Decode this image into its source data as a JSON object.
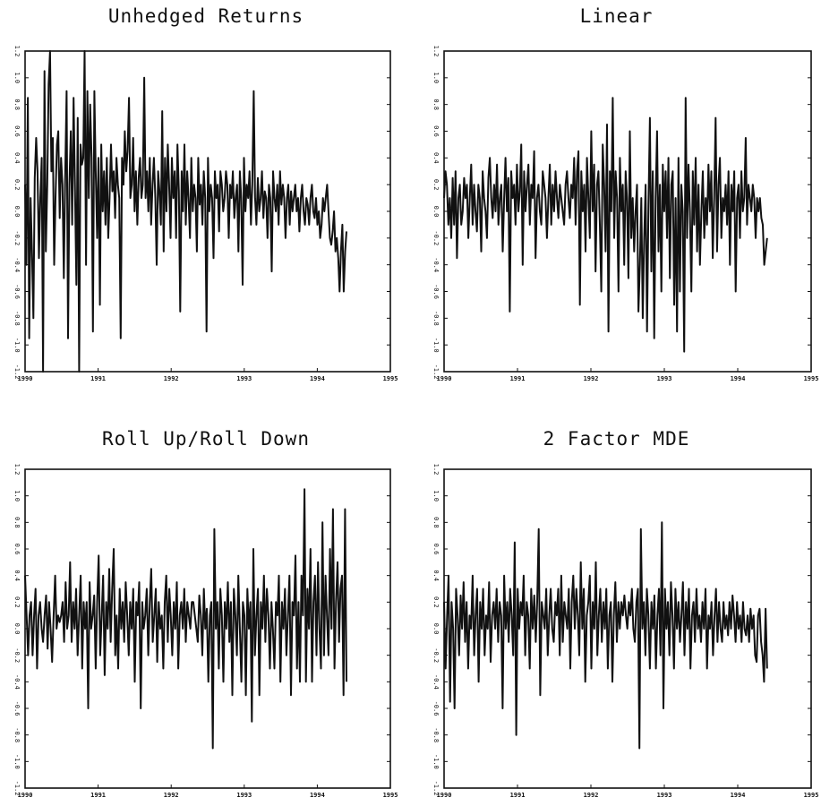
{
  "chart_data": [
    {
      "type": "line",
      "title": "Unhedged Returns",
      "xlabel": "",
      "ylabel": "",
      "xlim": [
        1990,
        1995
      ],
      "ylim": [
        -1.2,
        1.2
      ],
      "x_ticks": [
        "1990",
        "1991",
        "1992",
        "1993",
        "1994",
        "1995"
      ],
      "y_ticks": [
        "1.2",
        "1.0",
        "0.8",
        "0.6",
        "0.4",
        "0.2",
        "0.0",
        "-0.2",
        "-0.4",
        "-0.6",
        "-0.8",
        "-1.0",
        "-1.2"
      ],
      "series": [
        {
          "values": [
            0.2,
            -0.4,
            0.85,
            -0.95,
            0.1,
            -0.3,
            -0.8,
            0.25,
            0.55,
            0.3,
            -0.35,
            0.1,
            0.4,
            -1.2,
            1.05,
            -0.3,
            0.2,
            0.95,
            1.2,
            0.3,
            0.55,
            -0.4,
            0.1,
            0.5,
            0.6,
            -0.05,
            0.4,
            0.2,
            -0.5,
            0.3,
            0.9,
            -0.95,
            0.2,
            0.6,
            -0.1,
            0.85,
            0.2,
            -0.55,
            0.7,
            -1.2,
            0.5,
            0.35,
            0.4,
            1.2,
            -0.4,
            0.9,
            0.1,
            0.8,
            0.4,
            -0.9,
            0.9,
            0.3,
            -0.2,
            0.4,
            -0.7,
            0.5,
            0.0,
            0.3,
            -0.1,
            0.4,
            -0.2,
            0.1,
            0.5,
            0.15,
            0.3,
            -0.05,
            0.4,
            0.2,
            0.1,
            -0.95,
            0.4,
            0.2,
            0.6,
            0.3,
            0.45,
            0.85,
            0.1,
            0.2,
            0.55,
            0.0,
            0.3,
            -0.1,
            0.25,
            0.4,
            0.1,
            0.2,
            1.0,
            0.1,
            0.3,
            0.0,
            0.4,
            -0.1,
            0.2,
            0.4,
            0.1,
            -0.4,
            0.3,
            0.15,
            -0.1,
            0.75,
            -0.3,
            0.4,
            0.0,
            0.5,
            0.2,
            -0.2,
            0.4,
            0.1,
            0.3,
            -0.2,
            0.5,
            0.15,
            -0.75,
            0.3,
            0.0,
            0.5,
            -0.1,
            0.3,
            0.1,
            -0.2,
            0.4,
            0.0,
            0.2,
            0.1,
            -0.3,
            0.4,
            0.05,
            0.2,
            -0.1,
            0.3,
            0.1,
            -0.9,
            0.4,
            0.0,
            0.2,
            0.1,
            -0.35,
            0.3,
            0.1,
            0.2,
            -0.15,
            0.3,
            0.2,
            0.0,
            0.1,
            0.3,
            0.2,
            -0.2,
            0.2,
            0.1,
            0.3,
            -0.05,
            0.1,
            0.2,
            -0.3,
            0.3,
            0.1,
            -0.55,
            0.4,
            0.0,
            0.2,
            0.1,
            0.3,
            -0.1,
            0.2,
            0.9,
            0.1,
            -0.1,
            0.25,
            0.0,
            0.1,
            0.3,
            -0.05,
            0.15,
            0.1,
            -0.2,
            0.2,
            0.1,
            -0.45,
            0.3,
            0.1,
            0.0,
            0.2,
            -0.1,
            0.3,
            0.05,
            0.2,
            0.1,
            -0.2,
            0.1,
            0.2,
            -0.1,
            0.15,
            0.0,
            0.1,
            0.2,
            0.0,
            0.1,
            -0.15,
            0.1,
            0.2,
            0.0,
            -0.1,
            0.1,
            0.05,
            -0.1,
            0.1,
            0.2,
            0.0,
            -0.05,
            0.1,
            -0.1,
            0.0,
            -0.2,
            -0.1,
            0.1,
            0.0,
            0.1,
            0.2,
            0.0,
            -0.2,
            -0.25,
            -0.15,
            0.0,
            -0.3,
            -0.2,
            -0.35,
            -0.6,
            -0.3,
            -0.1,
            -0.6,
            -0.3,
            -0.15
          ]
        }
      ]
    },
    {
      "type": "line",
      "title": "Linear",
      "xlabel": "",
      "ylabel": "",
      "xlim": [
        1990,
        1995
      ],
      "ylim": [
        -1.2,
        1.2
      ],
      "x_ticks": [
        "1990",
        "1991",
        "1992",
        "1993",
        "1994",
        "1995"
      ],
      "y_ticks": [
        "1.2",
        "1.0",
        "0.8",
        "0.6",
        "0.4",
        "0.2",
        "0.0",
        "-0.2",
        "-0.4",
        "-0.6",
        "-0.8",
        "-1.0",
        "-1.2"
      ],
      "series": [
        {
          "values": [
            0.1,
            0.3,
            0.2,
            -0.1,
            0.1,
            -0.2,
            0.25,
            -0.1,
            0.3,
            -0.35,
            0.1,
            0.2,
            -0.1,
            0.0,
            0.25,
            0.1,
            0.2,
            -0.2,
            0.1,
            0.35,
            -0.1,
            0.2,
            0.0,
            -0.15,
            0.2,
            0.1,
            -0.3,
            0.3,
            0.1,
            0.0,
            -0.2,
            0.25,
            0.4,
            0.1,
            -0.05,
            0.2,
            0.0,
            0.35,
            -0.1,
            0.1,
            0.2,
            -0.3,
            0.1,
            0.4,
            0.0,
            0.25,
            -0.75,
            0.3,
            0.1,
            0.2,
            -0.1,
            0.35,
            0.0,
            0.15,
            0.5,
            -0.4,
            0.3,
            0.0,
            0.2,
            0.35,
            -0.1,
            0.2,
            0.1,
            0.45,
            -0.35,
            0.1,
            0.2,
            0.0,
            -0.1,
            0.3,
            0.2,
            0.1,
            -0.2,
            0.1,
            0.35,
            -0.1,
            0.2,
            0.0,
            0.3,
            0.1,
            -0.05,
            0.2,
            0.1,
            0.0,
            -0.1,
            0.2,
            0.3,
            0.1,
            -0.05,
            0.2,
            0.1,
            0.4,
            -0.1,
            0.3,
            0.45,
            -0.7,
            0.3,
            0.0,
            0.2,
            -0.3,
            0.4,
            0.1,
            -0.2,
            0.6,
            0.0,
            0.35,
            -0.45,
            0.2,
            0.3,
            -0.1,
            -0.6,
            0.5,
            0.2,
            -0.3,
            0.65,
            -0.9,
            0.3,
            0.0,
            0.85,
            -0.2,
            0.3,
            0.1,
            -0.6,
            0.4,
            0.0,
            0.2,
            -0.4,
            0.3,
            0.1,
            -0.5,
            0.6,
            -0.2,
            0.1,
            -0.3,
            0.0,
            0.2,
            -0.75,
            -0.4,
            0.1,
            -0.8,
            -0.2,
            0.2,
            -0.9,
            0.05,
            0.7,
            -0.45,
            0.3,
            -0.95,
            0.1,
            0.6,
            -0.3,
            0.2,
            -0.6,
            0.35,
            0.0,
            0.3,
            -0.2,
            0.4,
            -0.5,
            0.2,
            0.3,
            -0.7,
            0.1,
            -0.9,
            0.4,
            -0.6,
            0.2,
            0.0,
            -1.05,
            0.85,
            -0.2,
            0.35,
            0.0,
            -0.6,
            0.3,
            -0.1,
            0.4,
            -0.3,
            0.2,
            -0.4,
            0.0,
            0.3,
            -0.2,
            0.1,
            -0.1,
            0.35,
            0.0,
            0.3,
            -0.35,
            0.1,
            0.7,
            -0.3,
            0.2,
            0.4,
            -0.2,
            0.1,
            0.0,
            0.2,
            -0.1,
            0.3,
            -0.4,
            0.2,
            0.0,
            0.3,
            -0.6,
            0.1,
            0.2,
            -0.2,
            0.3,
            0.0,
            0.1,
            0.55,
            -0.1,
            0.2,
            0.1,
            0.0,
            0.2,
            0.1,
            -0.2,
            0.1,
            0.0,
            0.1,
            -0.05,
            -0.1,
            -0.4,
            -0.3,
            -0.2
          ]
        }
      ]
    },
    {
      "type": "line",
      "title": "Roll Up/Roll Down",
      "xlabel": "",
      "ylabel": "",
      "xlim": [
        1990,
        1995
      ],
      "ylim": [
        -1.2,
        1.2
      ],
      "x_ticks": [
        "1990",
        "1991",
        "1992",
        "1993",
        "1994",
        "1995"
      ],
      "y_ticks": [
        "1.2",
        "1.0",
        "0.8",
        "0.6",
        "0.4",
        "0.2",
        "0.0",
        "-0.2",
        "-0.4",
        "-0.6",
        "-0.8",
        "-1.0",
        "-1.2"
      ],
      "series": [
        {
          "values": [
            0.4,
            0.1,
            -0.2,
            0.1,
            0.2,
            -0.2,
            0.1,
            0.3,
            -0.3,
            0.1,
            0.2,
            0.0,
            -0.1,
            0.1,
            0.25,
            -0.15,
            0.2,
            0.0,
            -0.25,
            0.1,
            0.4,
            0.0,
            0.1,
            0.05,
            0.1,
            0.2,
            -0.1,
            0.35,
            0.0,
            0.1,
            0.5,
            -0.1,
            0.2,
            0.0,
            0.3,
            -0.2,
            0.1,
            0.4,
            -0.3,
            0.2,
            0.0,
            0.2,
            -0.6,
            0.35,
            0.0,
            0.1,
            0.25,
            -0.3,
            0.2,
            0.55,
            -0.2,
            0.1,
            0.4,
            -0.35,
            0.2,
            0.0,
            0.45,
            -0.1,
            0.3,
            0.6,
            -0.2,
            0.1,
            -0.3,
            0.3,
            0.0,
            0.2,
            -0.1,
            0.35,
            0.1,
            -0.2,
            0.2,
            0.0,
            0.3,
            -0.4,
            0.2,
            0.1,
            0.35,
            -0.6,
            0.2,
            0.0,
            0.1,
            0.3,
            -0.2,
            0.2,
            0.45,
            -0.1,
            0.1,
            0.3,
            -0.25,
            0.2,
            0.0,
            0.1,
            -0.3,
            0.2,
            0.4,
            -0.1,
            0.3,
            0.1,
            -0.2,
            0.2,
            0.0,
            0.35,
            -0.3,
            0.1,
            0.2,
            0.0,
            0.3,
            -0.1,
            0.2,
            0.1,
            0.0,
            0.2,
            0.2,
            0.1,
            0.0,
            -0.1,
            0.25,
            0.1,
            -0.2,
            0.3,
            0.0,
            0.15,
            -0.4,
            0.1,
            0.2,
            -0.9,
            0.75,
            0.0,
            0.2,
            -0.3,
            0.3,
            0.1,
            -0.4,
            0.2,
            0.0,
            0.35,
            -0.1,
            0.2,
            -0.5,
            0.3,
            0.1,
            -0.2,
            0.4,
            0.0,
            -0.4,
            0.2,
            0.1,
            -0.5,
            0.3,
            0.0,
            0.2,
            -0.7,
            0.6,
            -0.2,
            0.1,
            0.3,
            -0.5,
            0.2,
            0.0,
            0.4,
            -0.1,
            0.3,
            0.1,
            -0.3,
            0.2,
            0.0,
            -0.3,
            0.2,
            0.1,
            0.4,
            -0.4,
            0.2,
            0.0,
            0.3,
            -0.2,
            0.1,
            0.4,
            -0.5,
            0.2,
            0.1,
            0.55,
            -0.3,
            0.2,
            -0.4,
            0.4,
            0.1,
            1.05,
            -0.4,
            0.3,
            0.0,
            0.6,
            -0.4,
            0.2,
            0.4,
            -0.2,
            0.5,
            0.0,
            -0.3,
            0.8,
            -0.2,
            0.4,
            0.1,
            -0.2,
            0.6,
            0.0,
            0.9,
            -0.3,
            0.2,
            0.5,
            -0.1,
            0.3,
            0.4,
            -0.5,
            0.9,
            -0.4
          ]
        }
      ]
    },
    {
      "type": "line",
      "title": "2 Factor MDE",
      "xlabel": "",
      "ylabel": "",
      "xlim": [
        1990,
        1995
      ],
      "ylim": [
        -1.2,
        1.2
      ],
      "x_ticks": [
        "1990",
        "1991",
        "1992",
        "1993",
        "1994",
        "1995"
      ],
      "y_ticks": [
        "1.2",
        "1.0",
        "0.8",
        "0.6",
        "0.4",
        "0.2",
        "0.0",
        "-0.2",
        "-0.4",
        "-0.6",
        "-0.8",
        "-1.0",
        "-1.2"
      ],
      "series": [
        {
          "values": [
            0.2,
            -0.3,
            0.1,
            0.4,
            -0.55,
            0.2,
            0.0,
            -0.6,
            0.3,
            0.1,
            -0.2,
            0.25,
            0.0,
            0.35,
            -0.1,
            0.2,
            -0.3,
            0.1,
            0.0,
            0.4,
            -0.2,
            0.1,
            0.3,
            -0.4,
            0.2,
            0.0,
            0.3,
            -0.2,
            0.1,
            0.0,
            0.35,
            -0.25,
            0.1,
            0.2,
            0.0,
            0.3,
            -0.1,
            0.2,
            0.1,
            -0.6,
            0.4,
            0.0,
            0.2,
            -0.1,
            0.3,
            0.1,
            -0.2,
            0.65,
            -0.8,
            0.3,
            0.0,
            0.2,
            0.1,
            0.4,
            -0.2,
            0.2,
            0.1,
            -0.3,
            0.3,
            0.0,
            0.25,
            -0.1,
            0.2,
            0.75,
            -0.5,
            0.2,
            0.1,
            0.0,
            0.3,
            -0.2,
            0.1,
            0.3,
            0.0,
            -0.1,
            0.2,
            0.1,
            0.3,
            -0.2,
            0.4,
            -0.1,
            0.2,
            0.1,
            0.0,
            0.3,
            -0.3,
            0.2,
            0.4,
            0.0,
            0.3,
            0.1,
            -0.2,
            0.5,
            0.0,
            0.3,
            -0.4,
            0.1,
            0.2,
            0.4,
            -0.3,
            0.2,
            0.0,
            0.5,
            -0.2,
            0.1,
            0.3,
            -0.1,
            0.2,
            0.0,
            0.3,
            -0.3,
            0.1,
            0.2,
            -0.4,
            0.1,
            0.35,
            -0.1,
            0.2,
            0.0,
            0.2,
            0.1,
            0.25,
            0.1,
            0.0,
            0.2,
            0.1,
            0.3,
            0.0,
            -0.1,
            0.2,
            0.3,
            -0.9,
            0.75,
            0.0,
            0.2,
            -0.2,
            0.3,
            0.1,
            -0.3,
            0.2,
            0.0,
            0.25,
            -0.3,
            0.1,
            0.3,
            -0.2,
            0.8,
            -0.6,
            0.3,
            0.0,
            0.2,
            -0.2,
            0.35,
            0.1,
            -0.3,
            0.3,
            0.0,
            0.2,
            -0.1,
            0.1,
            0.35,
            -0.2,
            0.2,
            0.0,
            0.3,
            -0.3,
            0.1,
            0.2,
            -0.1,
            0.3,
            0.0,
            0.1,
            -0.1,
            0.2,
            0.0,
            0.3,
            -0.3,
            0.1,
            0.0,
            0.2,
            -0.2,
            0.1,
            0.3,
            -0.1,
            0.2,
            0.0,
            -0.1,
            0.2,
            0.0,
            0.1,
            -0.05,
            0.2,
            0.0,
            0.25,
            0.1,
            -0.1,
            0.2,
            0.0,
            0.1,
            -0.1,
            0.2,
            0.0,
            -0.05,
            0.1,
            -0.1,
            0.15,
            0.0,
            0.1,
            -0.2,
            -0.25,
            0.1,
            0.15,
            -0.1,
            -0.2,
            -0.4,
            0.15,
            -0.3
          ]
        }
      ]
    }
  ]
}
